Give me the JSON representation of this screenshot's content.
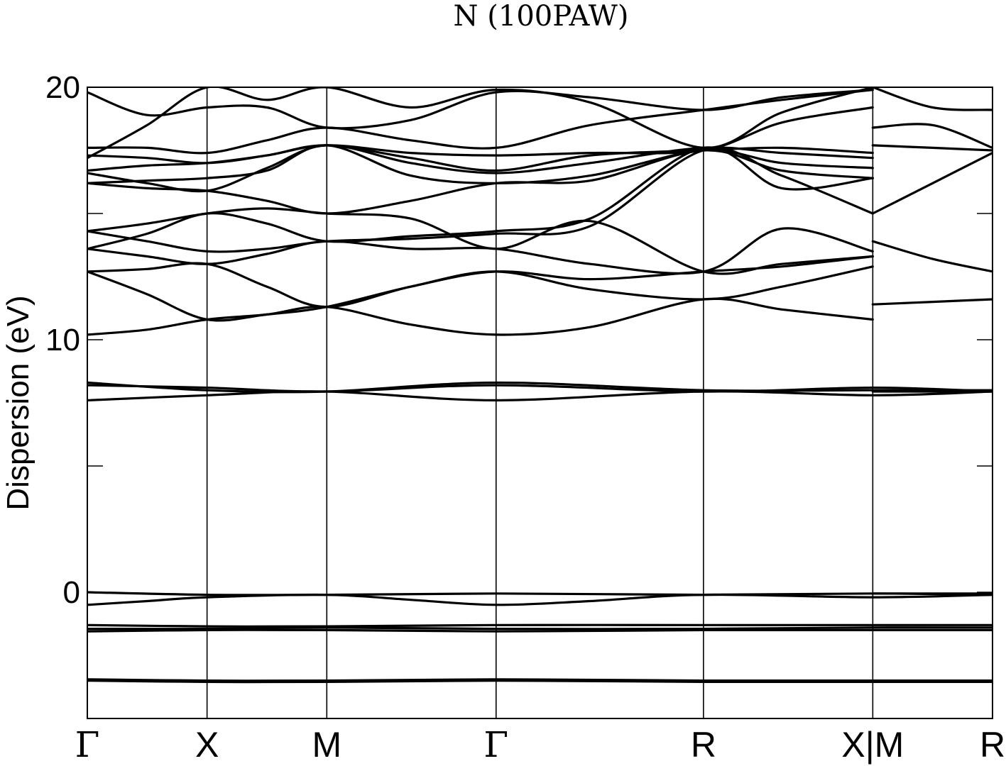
{
  "chart_data": {
    "type": "line",
    "title": "N (100PAW)",
    "ylabel": "Dispersion (eV)",
    "xlabel": "",
    "ylim": [
      -5,
      20
    ],
    "yticks": [
      {
        "value": 0,
        "label": "0"
      },
      {
        "value": 5,
        "label": ""
      },
      {
        "value": 10,
        "label": "10"
      },
      {
        "value": 15,
        "label": ""
      },
      {
        "value": 20,
        "label": "20"
      }
    ],
    "kpath": [
      {
        "label": "Γ",
        "x": 0.0,
        "kind": "gamma"
      },
      {
        "label": "X",
        "x": 0.5,
        "kind": "plain"
      },
      {
        "label": "M",
        "x": 1.0,
        "kind": "plain"
      },
      {
        "label": "Γ",
        "x": 1.707,
        "kind": "gamma"
      },
      {
        "label": "R",
        "x": 2.573,
        "kind": "plain"
      },
      {
        "label": "X|M",
        "x": 3.28,
        "kind": "plain"
      },
      {
        "label": "R",
        "x": 3.78,
        "kind": "plain"
      }
    ],
    "x_range": [
      0,
      3.78
    ],
    "grid": false,
    "series": [
      {
        "values": [
          [
            0,
            -3.5
          ],
          [
            0.5,
            -3.55
          ],
          [
            1.0,
            -3.55
          ],
          [
            1.707,
            -3.5
          ],
          [
            2.573,
            -3.55
          ],
          [
            3.28,
            -3.55
          ],
          [
            3.78,
            -3.55
          ]
        ]
      },
      {
        "values": [
          [
            0,
            -3.45
          ],
          [
            0.5,
            -3.5
          ],
          [
            1.0,
            -3.5
          ],
          [
            1.707,
            -3.45
          ],
          [
            2.573,
            -3.5
          ],
          [
            3.28,
            -3.5
          ],
          [
            3.78,
            -3.5
          ]
        ]
      },
      {
        "values": [
          [
            0,
            -1.3
          ],
          [
            0.5,
            -1.35
          ],
          [
            1.0,
            -1.35
          ],
          [
            1.707,
            -1.3
          ],
          [
            2.573,
            -1.3
          ],
          [
            3.28,
            -1.3
          ],
          [
            3.78,
            -1.3
          ]
        ]
      },
      {
        "values": [
          [
            0,
            -1.45
          ],
          [
            0.5,
            -1.45
          ],
          [
            1.0,
            -1.4
          ],
          [
            1.707,
            -1.45
          ],
          [
            2.573,
            -1.45
          ],
          [
            3.28,
            -1.4
          ],
          [
            3.78,
            -1.4
          ]
        ]
      },
      {
        "values": [
          [
            0,
            -1.55
          ],
          [
            0.5,
            -1.5
          ],
          [
            1.0,
            -1.5
          ],
          [
            1.707,
            -1.55
          ],
          [
            2.573,
            -1.5
          ],
          [
            3.28,
            -1.5
          ],
          [
            3.78,
            -1.5
          ]
        ]
      },
      {
        "values": [
          [
            0,
            -0.5
          ],
          [
            0.25,
            -0.35
          ],
          [
            0.5,
            -0.2
          ],
          [
            1.0,
            -0.1
          ],
          [
            1.35,
            -0.3
          ],
          [
            1.707,
            -0.5
          ],
          [
            2.1,
            -0.35
          ],
          [
            2.573,
            -0.1
          ],
          [
            3.28,
            -0.2
          ],
          [
            3.78,
            -0.1
          ]
        ]
      },
      {
        "values": [
          [
            0,
            0.0
          ],
          [
            0.5,
            -0.1
          ],
          [
            1.0,
            -0.1
          ],
          [
            1.707,
            -0.05
          ],
          [
            2.573,
            -0.1
          ],
          [
            3.28,
            -0.05
          ],
          [
            3.78,
            -0.1
          ]
        ]
      },
      {
        "values": [
          [
            0,
            7.6
          ],
          [
            0.5,
            7.8
          ],
          [
            1.0,
            7.95
          ],
          [
            1.707,
            7.6
          ],
          [
            2.573,
            7.95
          ],
          [
            3.28,
            7.8
          ],
          [
            3.78,
            7.95
          ]
        ]
      },
      {
        "values": [
          [
            0,
            8.2
          ],
          [
            0.5,
            8.1
          ],
          [
            1.0,
            7.95
          ],
          [
            1.707,
            8.2
          ],
          [
            2.573,
            7.95
          ],
          [
            3.28,
            8.1
          ],
          [
            3.78,
            7.95
          ]
        ]
      },
      {
        "values": [
          [
            0,
            8.3
          ],
          [
            0.5,
            8.0
          ],
          [
            1.0,
            7.95
          ],
          [
            1.707,
            8.3
          ],
          [
            2.573,
            8.0
          ],
          [
            3.28,
            8.0
          ],
          [
            3.78,
            8.0
          ]
        ]
      },
      {
        "values": [
          [
            0,
            10.2
          ],
          [
            0.25,
            10.4
          ],
          [
            0.5,
            10.8
          ],
          [
            0.75,
            11.0
          ],
          [
            1.0,
            11.3
          ],
          [
            1.35,
            10.6
          ],
          [
            1.707,
            10.2
          ],
          [
            2.1,
            10.5
          ],
          [
            2.573,
            11.6
          ],
          [
            2.9,
            11.2
          ],
          [
            3.28,
            10.8
          ]
        ]
      },
      {
        "values": [
          [
            0,
            12.7
          ],
          [
            0.25,
            11.8
          ],
          [
            0.5,
            10.8
          ],
          [
            0.75,
            11.0
          ],
          [
            1.0,
            11.3
          ],
          [
            1.35,
            12.1
          ],
          [
            1.707,
            12.7
          ],
          [
            2.1,
            12.0
          ],
          [
            2.573,
            11.6
          ],
          [
            2.9,
            12.1
          ],
          [
            3.28,
            12.9
          ]
        ]
      },
      {
        "values": [
          [
            0,
            12.7
          ],
          [
            0.25,
            12.8
          ],
          [
            0.5,
            13.0
          ],
          [
            0.75,
            12.1
          ],
          [
            1.0,
            11.3
          ],
          [
            1.35,
            12.1
          ],
          [
            1.707,
            12.7
          ],
          [
            2.1,
            12.4
          ],
          [
            2.573,
            12.7
          ],
          [
            2.9,
            12.9
          ],
          [
            3.28,
            13.3
          ]
        ]
      },
      {
        "values": [
          [
            0,
            13.6
          ],
          [
            0.25,
            13.3
          ],
          [
            0.5,
            13.0
          ],
          [
            0.75,
            13.4
          ],
          [
            1.0,
            13.9
          ],
          [
            1.35,
            13.6
          ],
          [
            1.707,
            13.6
          ],
          [
            2.1,
            13.0
          ],
          [
            2.573,
            12.7
          ],
          [
            2.9,
            14.4
          ],
          [
            3.28,
            13.5
          ]
        ]
      },
      {
        "values": [
          [
            0,
            14.3
          ],
          [
            0.25,
            13.9
          ],
          [
            0.5,
            13.5
          ],
          [
            0.75,
            13.6
          ],
          [
            1.0,
            13.9
          ],
          [
            1.35,
            14.0
          ],
          [
            1.707,
            14.2
          ],
          [
            2.1,
            14.5
          ],
          [
            2.573,
            17.5
          ],
          [
            2.9,
            16.5
          ],
          [
            3.28,
            15.0
          ]
        ]
      },
      {
        "values": [
          [
            0,
            13.6
          ],
          [
            0.25,
            14.2
          ],
          [
            0.5,
            15.0
          ],
          [
            0.75,
            14.6
          ],
          [
            1.0,
            13.9
          ],
          [
            1.35,
            14.1
          ],
          [
            1.707,
            14.3
          ],
          [
            2.1,
            14.8
          ],
          [
            2.573,
            17.6
          ],
          [
            2.9,
            16.0
          ],
          [
            3.28,
            16.4
          ]
        ]
      },
      {
        "values": [
          [
            0,
            14.3
          ],
          [
            0.25,
            14.6
          ],
          [
            0.5,
            15.0
          ],
          [
            0.75,
            15.2
          ],
          [
            1.0,
            15.0
          ],
          [
            1.35,
            14.8
          ],
          [
            1.707,
            13.6
          ],
          [
            2.1,
            14.7
          ],
          [
            2.573,
            12.7
          ],
          [
            2.9,
            13.0
          ],
          [
            3.28,
            13.3
          ]
        ]
      },
      {
        "values": [
          [
            0,
            16.2
          ],
          [
            0.25,
            16.0
          ],
          [
            0.5,
            15.9
          ],
          [
            0.75,
            15.5
          ],
          [
            1.0,
            15.0
          ],
          [
            1.35,
            15.5
          ],
          [
            1.707,
            16.2
          ],
          [
            2.1,
            16.3
          ],
          [
            2.573,
            17.5
          ],
          [
            2.9,
            16.7
          ],
          [
            3.28,
            16.4
          ]
        ]
      },
      {
        "values": [
          [
            0,
            16.2
          ],
          [
            0.25,
            16.3
          ],
          [
            0.5,
            16.4
          ],
          [
            0.75,
            16.7
          ],
          [
            1.0,
            17.7
          ],
          [
            1.35,
            16.5
          ],
          [
            1.707,
            16.2
          ],
          [
            2.1,
            16.5
          ],
          [
            2.573,
            17.5
          ],
          [
            2.9,
            17.0
          ],
          [
            3.28,
            16.8
          ]
        ]
      },
      {
        "values": [
          [
            0,
            16.6
          ],
          [
            0.25,
            16.2
          ],
          [
            0.5,
            15.9
          ],
          [
            0.75,
            16.8
          ],
          [
            1.0,
            17.7
          ],
          [
            1.35,
            17.0
          ],
          [
            1.707,
            16.6
          ],
          [
            2.1,
            17.0
          ],
          [
            2.573,
            17.6
          ],
          [
            2.9,
            17.4
          ],
          [
            3.28,
            17.2
          ]
        ]
      },
      {
        "values": [
          [
            0,
            16.7
          ],
          [
            0.25,
            16.9
          ],
          [
            0.5,
            17.0
          ],
          [
            0.75,
            17.3
          ],
          [
            1.0,
            17.7
          ],
          [
            1.35,
            17.2
          ],
          [
            1.707,
            16.7
          ],
          [
            2.1,
            17.3
          ],
          [
            2.573,
            17.5
          ],
          [
            2.9,
            17.6
          ],
          [
            3.28,
            17.4
          ]
        ]
      },
      {
        "values": [
          [
            0,
            17.3
          ],
          [
            0.25,
            17.2
          ],
          [
            0.5,
            17.0
          ],
          [
            0.75,
            17.3
          ],
          [
            1.0,
            17.7
          ],
          [
            1.35,
            17.4
          ],
          [
            1.707,
            17.3
          ],
          [
            2.1,
            17.4
          ],
          [
            2.573,
            17.5
          ],
          [
            2.9,
            18.6
          ],
          [
            3.28,
            19.2
          ]
        ]
      },
      {
        "values": [
          [
            0,
            17.6
          ],
          [
            0.25,
            17.6
          ],
          [
            0.5,
            17.4
          ],
          [
            0.75,
            17.9
          ],
          [
            1.0,
            18.4
          ],
          [
            1.35,
            17.9
          ],
          [
            1.707,
            17.6
          ],
          [
            2.1,
            18.5
          ],
          [
            2.573,
            19.1
          ],
          [
            2.9,
            19.5
          ],
          [
            3.28,
            19.9
          ]
        ]
      },
      {
        "values": [
          [
            0,
            19.8
          ],
          [
            0.25,
            18.9
          ],
          [
            0.5,
            19.2
          ],
          [
            0.75,
            19.2
          ],
          [
            1.0,
            18.4
          ],
          [
            1.35,
            18.7
          ],
          [
            1.707,
            19.8
          ],
          [
            2.1,
            19.6
          ],
          [
            2.573,
            19.1
          ],
          [
            2.9,
            19.6
          ],
          [
            3.28,
            19.9
          ]
        ]
      },
      {
        "values": [
          [
            0,
            17.2
          ],
          [
            0.25,
            18.5
          ],
          [
            0.5,
            20.0
          ],
          [
            0.75,
            19.5
          ],
          [
            1.0,
            20.0
          ],
          [
            1.35,
            19.2
          ],
          [
            1.707,
            19.9
          ],
          [
            2.1,
            19.4
          ],
          [
            2.573,
            17.6
          ],
          [
            2.9,
            19.0
          ],
          [
            3.28,
            20.0
          ]
        ]
      },
      {
        "values": [
          [
            3.28,
            -0.05
          ],
          [
            3.53,
            -0.05
          ],
          [
            3.78,
            -0.05
          ]
        ]
      },
      {
        "values": [
          [
            3.28,
            7.95
          ],
          [
            3.53,
            7.95
          ],
          [
            3.78,
            7.95
          ]
        ]
      },
      {
        "values": [
          [
            3.28,
            11.4
          ],
          [
            3.53,
            11.5
          ],
          [
            3.78,
            11.6
          ]
        ]
      },
      {
        "values": [
          [
            3.28,
            13.9
          ],
          [
            3.53,
            13.2
          ],
          [
            3.78,
            12.7
          ]
        ]
      },
      {
        "values": [
          [
            3.28,
            15.0
          ],
          [
            3.53,
            16.2
          ],
          [
            3.78,
            17.4
          ]
        ]
      },
      {
        "values": [
          [
            3.28,
            17.7
          ],
          [
            3.53,
            17.6
          ],
          [
            3.78,
            17.5
          ]
        ]
      },
      {
        "values": [
          [
            3.28,
            18.4
          ],
          [
            3.53,
            18.5
          ],
          [
            3.78,
            17.6
          ]
        ]
      },
      {
        "values": [
          [
            3.28,
            20.0
          ],
          [
            3.53,
            19.2
          ],
          [
            3.78,
            19.1
          ]
        ]
      }
    ]
  }
}
